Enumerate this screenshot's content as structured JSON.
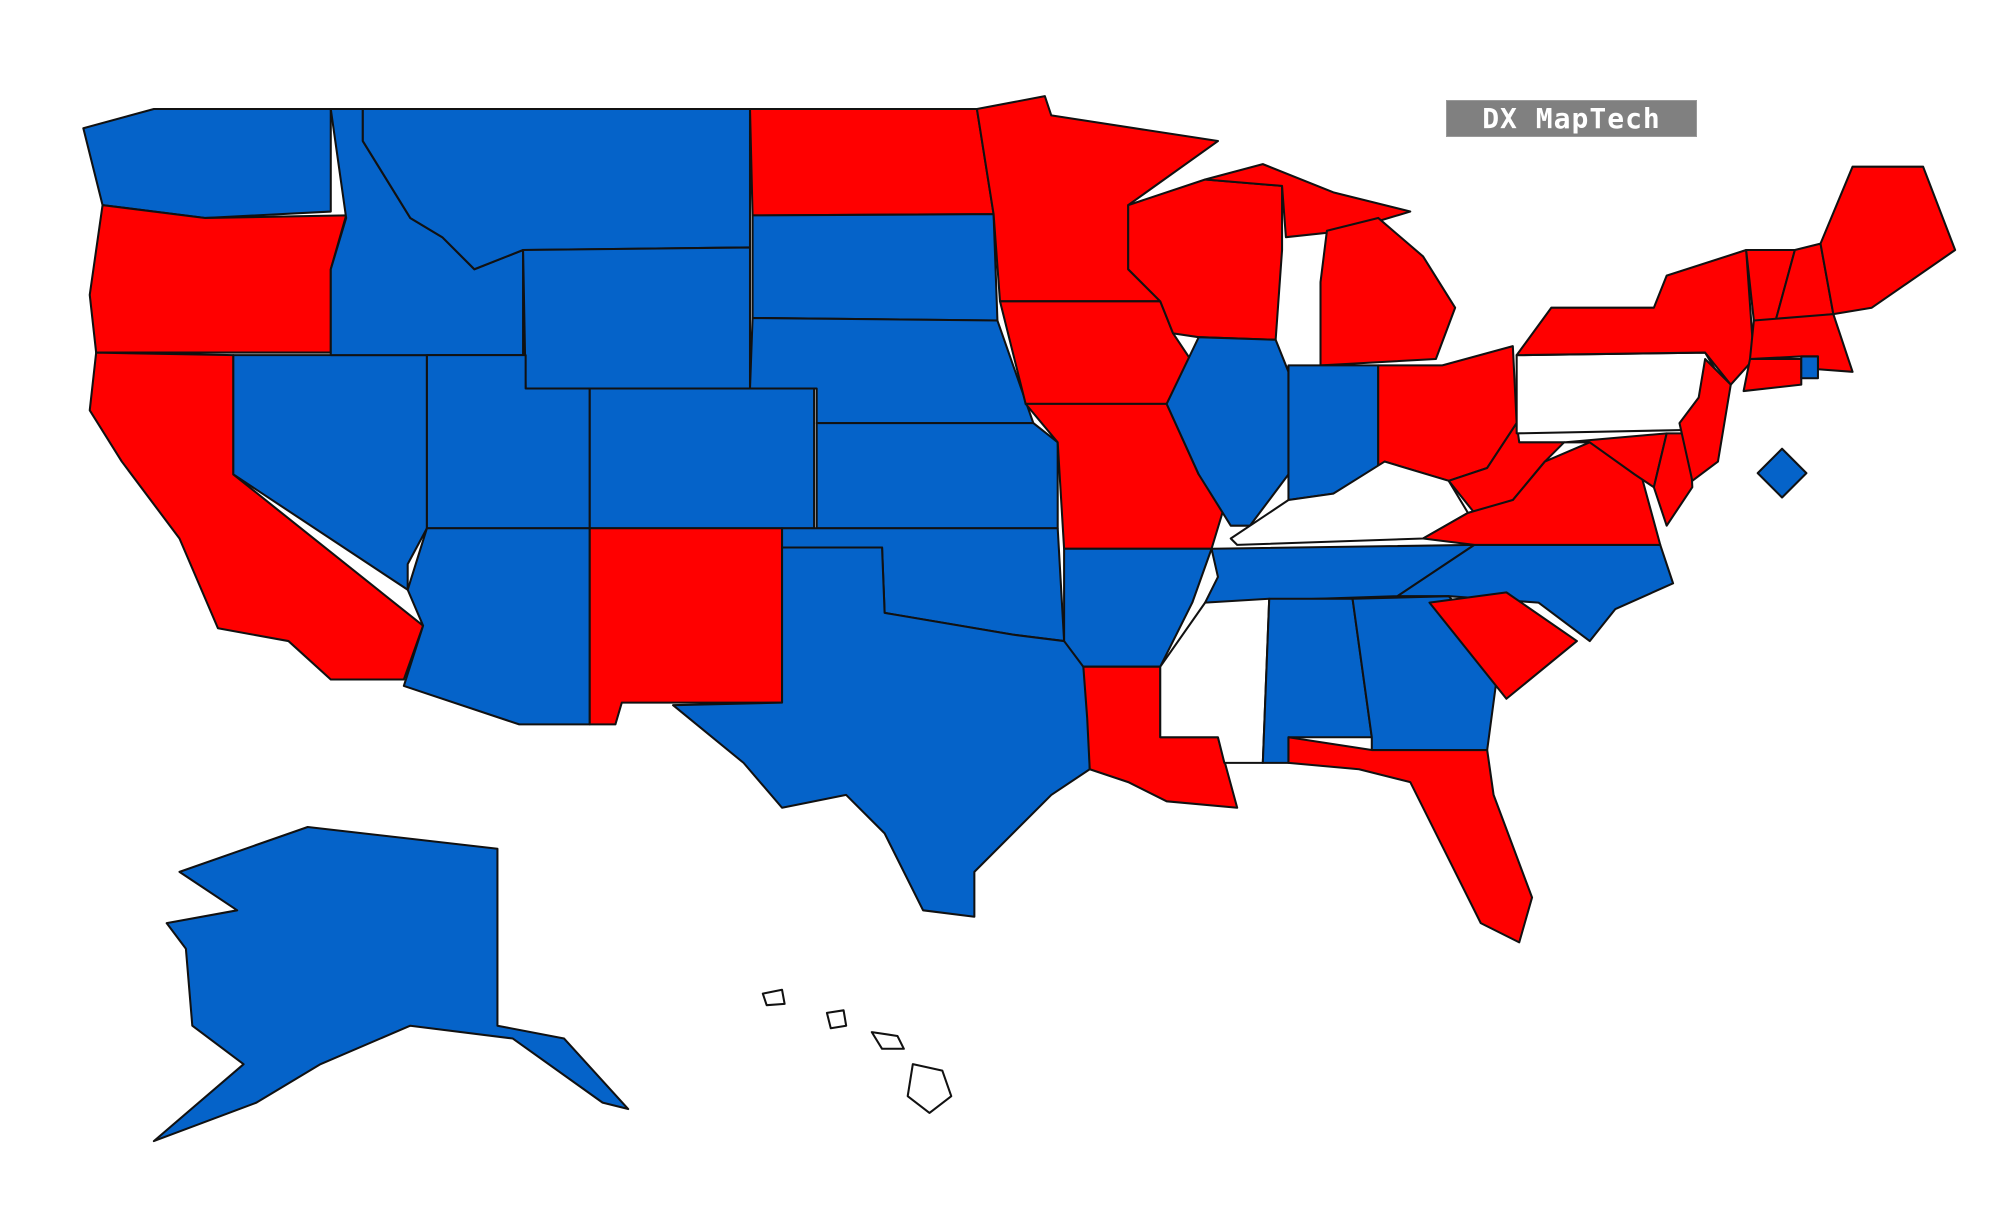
{
  "brand": {
    "label": "DX MapTech",
    "background": "#808080"
  },
  "legend_colors": {
    "red": "#FF0000",
    "blue": "#0563C9",
    "none": "#FFFFFF"
  },
  "state_fills": {
    "WA": "blue",
    "OR": "red",
    "CA": "red",
    "NV": "blue",
    "ID": "blue",
    "MT": "blue",
    "WY": "blue",
    "UT": "blue",
    "CO": "blue",
    "AZ": "blue",
    "NM": "red",
    "ND": "red",
    "SD": "blue",
    "NE": "blue",
    "KS": "blue",
    "OK": "blue",
    "TX": "blue",
    "MN": "red",
    "IA": "red",
    "MO": "red",
    "AR": "blue",
    "LA": "red",
    "WI": "red",
    "MI": "red",
    "IL": "blue",
    "IN": "blue",
    "OH": "red",
    "KY": "none",
    "TN": "blue",
    "MS": "none",
    "AL": "blue",
    "GA": "blue",
    "SC": "red",
    "NC": "blue",
    "FL": "red",
    "WV": "red",
    "VA": "red",
    "MD": "red",
    "DE": "red",
    "PA": "none",
    "NY": "red",
    "NJ": "red",
    "VT": "red",
    "NH": "red",
    "ME": "red",
    "MA": "red",
    "CT": "red",
    "RI": "blue",
    "DC": "blue",
    "AK": "blue",
    "HI": "none"
  }
}
